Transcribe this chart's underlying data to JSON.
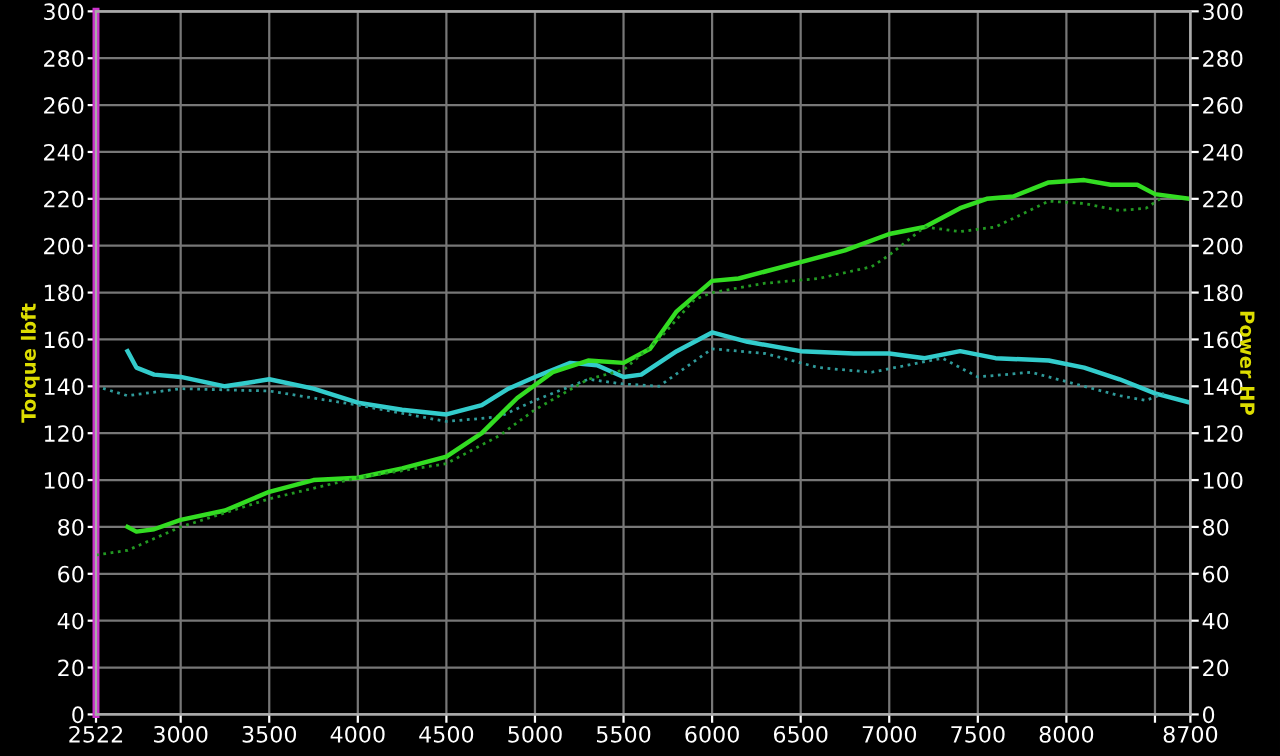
{
  "chart_data": {
    "type": "line",
    "ylabel": "Torque lbft",
    "y2label": "Power HP",
    "xlim": [
      2522,
      8700
    ],
    "xticks": [
      2522,
      3000,
      3500,
      4000,
      4500,
      5000,
      5500,
      6000,
      6500,
      7000,
      7500,
      8000,
      {
        "value": 8500,
        "label": null
      },
      8700
    ],
    "ylim": [
      0,
      300
    ],
    "yticks": [
      0,
      20,
      40,
      60,
      80,
      100,
      120,
      140,
      160,
      180,
      200,
      220,
      240,
      260,
      280,
      300
    ],
    "y2lim": [
      0,
      300
    ],
    "y2ticks": [
      0,
      20,
      40,
      60,
      80,
      100,
      120,
      140,
      160,
      180,
      200,
      220,
      240,
      260,
      280,
      300
    ],
    "grid": true,
    "legend": false,
    "marker": "none",
    "series": [
      {
        "color": "#33cccc",
        "line_style": "solid",
        "x": [
          2700,
          2750,
          2850,
          3000,
          3250,
          3500,
          3750,
          4000,
          4250,
          4500,
          4700,
          4850,
          5000,
          5200,
          5350,
          5500,
          5600,
          5800,
          6000,
          6200,
          6500,
          6800,
          7000,
          7200,
          7400,
          7600,
          7900,
          8100,
          8300,
          8500,
          8700
        ],
        "values": [
          155,
          148,
          145,
          144,
          140,
          143,
          139,
          133,
          130,
          128,
          132,
          139,
          144,
          150,
          149,
          144,
          145,
          155,
          163,
          159,
          155,
          154,
          154,
          152,
          155,
          152,
          151,
          148,
          143,
          137,
          133
        ]
      },
      {
        "color": "#2f9a9a",
        "line_style": "dotted",
        "x": [
          2522,
          2700,
          3000,
          3500,
          4000,
          4500,
          4800,
          5000,
          5300,
          5500,
          5700,
          6000,
          6300,
          6600,
          6900,
          7100,
          7300,
          7500,
          7800,
          8000,
          8300,
          8450,
          8550
        ],
        "values": [
          140,
          136,
          139,
          138,
          132,
          125,
          127,
          134,
          143,
          141,
          140,
          156,
          154,
          148,
          146,
          149,
          152,
          144,
          146,
          142,
          136,
          134,
          137
        ]
      },
      {
        "color": "#33dd22",
        "line_style": "solid",
        "axis": "y2",
        "x": [
          2700,
          2750,
          2850,
          3000,
          3250,
          3500,
          3750,
          4000,
          4250,
          4500,
          4700,
          4900,
          5100,
          5300,
          5500,
          5650,
          5800,
          6000,
          6150,
          6300,
          6500,
          6750,
          7000,
          7200,
          7400,
          7550,
          7700,
          7900,
          8100,
          8250,
          8400,
          8500,
          8700
        ],
        "values": [
          80,
          78,
          79,
          83,
          87,
          95,
          100,
          101,
          105,
          110,
          120,
          135,
          146,
          151,
          150,
          156,
          172,
          185,
          186,
          189,
          193,
          198,
          205,
          208,
          216,
          220,
          221,
          227,
          228,
          226,
          226,
          222,
          220
        ]
      },
      {
        "color": "#229922",
        "line_style": "dotted",
        "axis": "y2",
        "x": [
          2522,
          2700,
          3000,
          3500,
          4000,
          4500,
          4800,
          5000,
          5300,
          5500,
          5700,
          5900,
          6000,
          6300,
          6600,
          6900,
          7000,
          7200,
          7400,
          7600,
          7900,
          8100,
          8300,
          8450,
          8550
        ],
        "values": [
          68,
          70,
          80,
          92,
          101,
          107,
          119,
          130,
          143,
          147,
          160,
          177,
          180,
          184,
          186,
          191,
          196,
          208,
          206,
          208,
          219,
          218,
          215,
          216,
          221
        ]
      }
    ]
  }
}
